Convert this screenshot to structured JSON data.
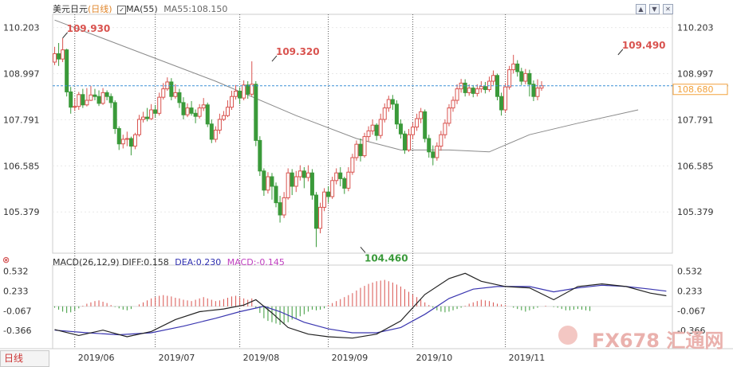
{
  "header": {
    "symbol": "美元日元",
    "period": "(日线)",
    "ma_label": "MA(55)",
    "ma_value_label": "MA55:108.150",
    "period_tab": "日线"
  },
  "macd_header": {
    "params": "MACD(26,12,9)",
    "diff": "DIFF:0.158",
    "dea": "DEA:0.230",
    "macd": "MACD:-0.145"
  },
  "watermark": "FX678 汇通网",
  "colors": {
    "up": "#d9534f",
    "down": "#3a9a3a",
    "ma": "#8a8a8a",
    "diff": "#222222",
    "dea": "#3a36b0",
    "price_line": "#3b8fd6",
    "price_tag": "#f2a13b"
  },
  "chart_data": {
    "type": "candlestick",
    "price_axis_ticks": [
      110.203,
      108.997,
      107.791,
      106.585,
      105.379
    ],
    "current_price": 108.68,
    "annotations": [
      {
        "label": "109.930",
        "date_index": 2,
        "value": 109.93
      },
      {
        "label": "109.320",
        "date_index": 54,
        "value": 109.32
      },
      {
        "label": "104.460",
        "date_index": 76,
        "value": 104.46
      },
      {
        "label": "109.490",
        "date_index": 140,
        "value": 109.49
      }
    ],
    "x_labels": [
      {
        "label": "2019/06",
        "index": 5
      },
      {
        "label": "2019/07",
        "index": 25
      },
      {
        "label": "2019/08",
        "index": 46
      },
      {
        "label": "2019/09",
        "index": 68
      },
      {
        "label": "2019/10",
        "index": 89
      },
      {
        "label": "2019/11",
        "index": 112
      }
    ],
    "ma_points": [
      [
        0,
        110.4
      ],
      [
        20,
        109.6
      ],
      [
        40,
        108.8
      ],
      [
        60,
        107.9
      ],
      [
        75,
        107.3
      ],
      [
        86,
        107.0
      ],
      [
        98,
        107.0
      ],
      [
        108,
        106.95
      ],
      [
        118,
        107.4
      ],
      [
        130,
        107.7
      ],
      [
        145,
        108.05
      ]
    ],
    "candles": [
      [
        109.3,
        109.52,
        109.7,
        109.22
      ],
      [
        109.52,
        109.38,
        109.8,
        109.2
      ],
      [
        109.38,
        109.62,
        109.93,
        109.3
      ],
      [
        109.62,
        108.52,
        109.65,
        108.4
      ],
      [
        108.52,
        108.12,
        108.65,
        107.95
      ],
      [
        108.12,
        108.14,
        108.35,
        108.02
      ],
      [
        108.14,
        108.45,
        108.52,
        108.05
      ],
      [
        108.45,
        108.18,
        108.6,
        108.1
      ],
      [
        108.18,
        108.3,
        108.62,
        108.14
      ],
      [
        108.3,
        108.44,
        108.68,
        108.28
      ],
      [
        108.44,
        108.4,
        108.6,
        108.3
      ],
      [
        108.4,
        108.22,
        108.56,
        108.15
      ],
      [
        108.22,
        108.5,
        108.62,
        108.18
      ],
      [
        108.5,
        108.4,
        108.56,
        108.3
      ],
      [
        108.4,
        108.24,
        108.48,
        108.1
      ],
      [
        108.24,
        107.56,
        108.3,
        107.42
      ],
      [
        107.56,
        107.16,
        107.62,
        107.0
      ],
      [
        107.16,
        107.28,
        107.4,
        107.04
      ],
      [
        107.28,
        107.3,
        107.48,
        107.1
      ],
      [
        107.3,
        107.1,
        107.35,
        106.86
      ],
      [
        107.1,
        107.4,
        107.45,
        107.02
      ],
      [
        107.4,
        107.8,
        107.92,
        107.35
      ],
      [
        107.8,
        107.86,
        108.0,
        107.72
      ],
      [
        107.86,
        107.82,
        108.1,
        107.75
      ],
      [
        107.82,
        108.05,
        108.2,
        107.78
      ],
      [
        108.05,
        107.96,
        108.18,
        107.85
      ],
      [
        107.96,
        108.38,
        108.5,
        107.9
      ],
      [
        108.38,
        108.6,
        108.75,
        108.32
      ],
      [
        108.6,
        108.78,
        108.9,
        108.55
      ],
      [
        108.78,
        108.4,
        108.88,
        108.3
      ],
      [
        108.4,
        108.5,
        108.72,
        108.34
      ],
      [
        108.5,
        108.24,
        108.6,
        108.1
      ],
      [
        108.24,
        107.92,
        108.38,
        107.8
      ],
      [
        107.92,
        108.1,
        108.22,
        107.86
      ],
      [
        108.1,
        107.96,
        108.28,
        107.9
      ],
      [
        107.96,
        107.88,
        108.06,
        107.7
      ],
      [
        107.88,
        108.1,
        108.2,
        107.82
      ],
      [
        108.1,
        108.18,
        108.36,
        108.02
      ],
      [
        108.18,
        107.68,
        108.24,
        107.6
      ],
      [
        107.68,
        107.28,
        107.8,
        107.18
      ],
      [
        107.28,
        107.52,
        107.62,
        107.2
      ],
      [
        107.52,
        107.8,
        107.95,
        107.42
      ],
      [
        107.8,
        107.9,
        108.02,
        107.76
      ],
      [
        107.9,
        108.12,
        108.3,
        107.86
      ],
      [
        108.12,
        108.4,
        108.55,
        108.05
      ],
      [
        108.4,
        108.54,
        108.7,
        108.32
      ],
      [
        108.54,
        108.36,
        108.64,
        108.2
      ],
      [
        108.36,
        108.7,
        108.82,
        108.3
      ],
      [
        108.7,
        108.46,
        108.8,
        108.34
      ],
      [
        108.46,
        108.72,
        109.32,
        108.4
      ],
      [
        108.72,
        107.25,
        108.8,
        107.1
      ],
      [
        107.25,
        106.45,
        107.36,
        106.32
      ],
      [
        106.45,
        105.95,
        106.52,
        105.8
      ],
      [
        105.95,
        106.3,
        106.42,
        105.86
      ],
      [
        106.3,
        106.05,
        106.4,
        105.7
      ],
      [
        106.05,
        105.62,
        106.15,
        105.5
      ],
      [
        105.62,
        105.3,
        105.8,
        105.1
      ],
      [
        105.3,
        105.75,
        105.9,
        105.22
      ],
      [
        105.75,
        106.4,
        106.52,
        105.7
      ],
      [
        106.4,
        106.05,
        106.5,
        105.82
      ],
      [
        106.05,
        106.3,
        106.45,
        105.9
      ],
      [
        106.3,
        106.45,
        106.6,
        106.2
      ],
      [
        106.45,
        106.28,
        106.55,
        106.0
      ],
      [
        106.28,
        106.4,
        106.6,
        106.18
      ],
      [
        106.4,
        105.82,
        106.5,
        105.7
      ],
      [
        105.82,
        104.95,
        105.9,
        104.46
      ],
      [
        104.95,
        105.5,
        105.62,
        104.82
      ],
      [
        105.5,
        105.9,
        106.0,
        105.4
      ],
      [
        105.9,
        105.78,
        106.05,
        105.62
      ],
      [
        105.78,
        106.2,
        106.3,
        105.72
      ],
      [
        106.2,
        106.4,
        106.52,
        106.1
      ],
      [
        106.4,
        106.25,
        106.55,
        106.05
      ],
      [
        106.25,
        106.0,
        106.3,
        105.85
      ],
      [
        106.0,
        106.42,
        106.55,
        105.92
      ],
      [
        106.42,
        106.8,
        106.9,
        106.35
      ],
      [
        106.8,
        107.15,
        107.25,
        106.72
      ],
      [
        107.15,
        106.85,
        107.3,
        106.7
      ],
      [
        106.85,
        107.35,
        107.45,
        106.8
      ],
      [
        107.35,
        107.5,
        107.62,
        107.22
      ],
      [
        107.5,
        107.65,
        107.8,
        107.4
      ],
      [
        107.65,
        107.38,
        107.7,
        107.25
      ],
      [
        107.38,
        107.8,
        107.95,
        107.3
      ],
      [
        107.8,
        108.1,
        108.22,
        107.72
      ],
      [
        108.1,
        108.32,
        108.42,
        108.0
      ],
      [
        108.32,
        108.2,
        108.44,
        108.05
      ],
      [
        108.2,
        107.68,
        108.3,
        107.55
      ],
      [
        107.68,
        107.42,
        107.8,
        107.3
      ],
      [
        107.42,
        107.0,
        107.5,
        106.9
      ],
      [
        107.0,
        107.4,
        107.55,
        106.95
      ],
      [
        107.4,
        107.6,
        107.72,
        107.28
      ],
      [
        107.6,
        107.82,
        107.95,
        107.5
      ],
      [
        107.82,
        108.0,
        108.1,
        107.7
      ],
      [
        108.0,
        107.3,
        108.06,
        107.2
      ],
      [
        107.3,
        106.95,
        107.4,
        106.8
      ],
      [
        106.95,
        106.8,
        107.12,
        106.6
      ],
      [
        106.8,
        107.1,
        107.2,
        106.72
      ],
      [
        107.1,
        107.4,
        107.5,
        106.98
      ],
      [
        107.4,
        107.7,
        107.8,
        107.3
      ],
      [
        107.7,
        108.1,
        108.2,
        107.62
      ],
      [
        108.1,
        108.3,
        108.4,
        108.0
      ],
      [
        108.3,
        108.6,
        108.72,
        108.2
      ],
      [
        108.6,
        108.75,
        108.86,
        108.5
      ],
      [
        108.75,
        108.5,
        108.85,
        108.4
      ],
      [
        108.5,
        108.62,
        108.72,
        108.42
      ],
      [
        108.62,
        108.48,
        108.7,
        108.38
      ],
      [
        108.48,
        108.6,
        108.72,
        108.4
      ],
      [
        108.6,
        108.66,
        108.8,
        108.5
      ],
      [
        108.66,
        108.58,
        108.78,
        108.48
      ],
      [
        108.58,
        108.8,
        108.92,
        108.52
      ],
      [
        108.8,
        108.95,
        109.08,
        108.7
      ],
      [
        108.95,
        108.4,
        109.0,
        108.3
      ],
      [
        108.4,
        108.05,
        108.5,
        107.9
      ],
      [
        108.05,
        108.65,
        108.75,
        107.98
      ],
      [
        108.65,
        109.1,
        109.2,
        108.58
      ],
      [
        109.1,
        109.25,
        109.49,
        109.0
      ],
      [
        109.25,
        109.05,
        109.35,
        108.92
      ],
      [
        109.05,
        108.8,
        109.15,
        108.7
      ],
      [
        108.8,
        109.0,
        109.12,
        108.72
      ],
      [
        109.0,
        108.72,
        109.1,
        108.4
      ],
      [
        108.72,
        108.4,
        108.82,
        108.28
      ],
      [
        108.4,
        108.62,
        108.85,
        108.3
      ],
      [
        108.62,
        108.68,
        108.8,
        108.55
      ]
    ],
    "macd_axis_ticks": [
      0.532,
      0.233,
      -0.067,
      -0.366
    ],
    "diff_points": [
      [
        0,
        -0.35
      ],
      [
        6,
        -0.44
      ],
      [
        12,
        -0.36
      ],
      [
        18,
        -0.46
      ],
      [
        24,
        -0.38
      ],
      [
        30,
        -0.2
      ],
      [
        36,
        -0.08
      ],
      [
        42,
        -0.04
      ],
      [
        47,
        0.02
      ],
      [
        50,
        0.1
      ],
      [
        54,
        -0.1
      ],
      [
        58,
        -0.32
      ],
      [
        63,
        -0.42
      ],
      [
        68,
        -0.46
      ],
      [
        74,
        -0.48
      ],
      [
        80,
        -0.42
      ],
      [
        86,
        -0.22
      ],
      [
        92,
        0.18
      ],
      [
        98,
        0.42
      ],
      [
        102,
        0.5
      ],
      [
        106,
        0.38
      ],
      [
        112,
        0.3
      ],
      [
        118,
        0.28
      ],
      [
        124,
        0.1
      ],
      [
        130,
        0.3
      ],
      [
        136,
        0.34
      ],
      [
        142,
        0.3
      ],
      [
        148,
        0.2
      ],
      [
        152,
        0.16
      ]
    ],
    "dea_points": [
      [
        0,
        -0.36
      ],
      [
        8,
        -0.4
      ],
      [
        16,
        -0.43
      ],
      [
        24,
        -0.4
      ],
      [
        32,
        -0.3
      ],
      [
        40,
        -0.18
      ],
      [
        46,
        -0.08
      ],
      [
        52,
        0.0
      ],
      [
        56,
        -0.08
      ],
      [
        62,
        -0.24
      ],
      [
        68,
        -0.34
      ],
      [
        74,
        -0.4
      ],
      [
        80,
        -0.4
      ],
      [
        86,
        -0.32
      ],
      [
        92,
        -0.12
      ],
      [
        98,
        0.12
      ],
      [
        104,
        0.26
      ],
      [
        110,
        0.3
      ],
      [
        118,
        0.3
      ],
      [
        124,
        0.22
      ],
      [
        130,
        0.28
      ],
      [
        136,
        0.32
      ],
      [
        142,
        0.3
      ],
      [
        148,
        0.26
      ],
      [
        152,
        0.23
      ]
    ],
    "macd_bars": [
      -0.02,
      -0.05,
      -0.08,
      -0.1,
      -0.09,
      -0.06,
      -0.03,
      0.01,
      0.04,
      0.06,
      0.08,
      0.09,
      0.07,
      0.05,
      0.02,
      -0.01,
      -0.03,
      -0.05,
      -0.06,
      -0.04,
      0.0,
      0.03,
      0.06,
      0.09,
      0.12,
      0.14,
      0.16,
      0.17,
      0.16,
      0.15,
      0.13,
      0.12,
      0.1,
      0.09,
      0.08,
      0.1,
      0.12,
      0.14,
      0.12,
      0.1,
      0.08,
      0.09,
      0.11,
      0.13,
      0.15,
      0.16,
      0.14,
      0.12,
      0.1,
      0.12,
      -0.02,
      -0.1,
      -0.18,
      -0.22,
      -0.24,
      -0.26,
      -0.28,
      -0.27,
      -0.24,
      -0.2,
      -0.18,
      -0.15,
      -0.12,
      -0.08,
      -0.05,
      -0.06,
      -0.05,
      -0.03,
      0.02,
      0.05,
      0.08,
      0.11,
      0.14,
      0.17,
      0.2,
      0.24,
      0.28,
      0.31,
      0.34,
      0.36,
      0.38,
      0.39,
      0.4,
      0.38,
      0.36,
      0.33,
      0.3,
      0.26,
      0.22,
      0.18,
      0.14,
      0.1,
      0.06,
      0.02,
      -0.02,
      -0.06,
      -0.08,
      -0.09,
      -0.08,
      -0.06,
      -0.04,
      -0.02,
      0.01,
      0.04,
      0.06,
      0.08,
      0.1,
      0.09,
      0.08,
      0.06,
      0.04,
      0.03,
      0.02,
      0.0,
      -0.02,
      -0.04,
      -0.06,
      -0.08,
      -0.06,
      -0.04,
      -0.02,
      0.0,
      0.01,
      0.0,
      -0.01,
      -0.02,
      -0.04,
      -0.06,
      -0.06,
      -0.05,
      -0.04,
      -0.05,
      -0.06,
      -0.07
    ]
  }
}
